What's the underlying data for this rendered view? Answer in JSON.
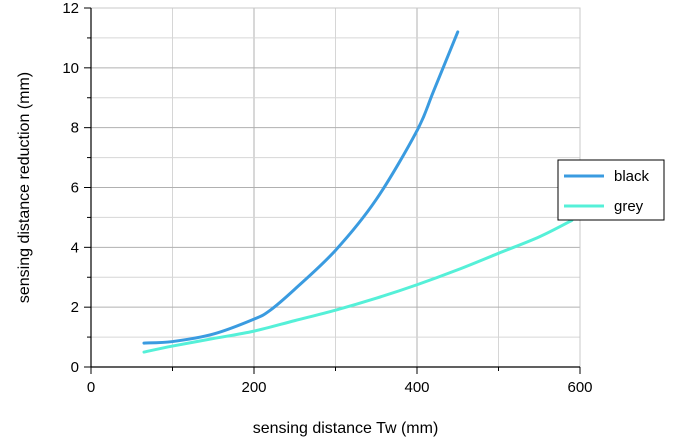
{
  "chart_data": {
    "type": "line",
    "xlabel": "sensing distance Tw (mm)",
    "ylabel": "sensing distance reduction (mm)",
    "xlim": [
      0,
      600
    ],
    "ylim": [
      0,
      12
    ],
    "x_ticks": [
      0,
      200,
      400,
      600
    ],
    "x_gridlines": [
      0,
      100,
      200,
      300,
      400,
      500,
      600
    ],
    "y_ticks": [
      0,
      2,
      4,
      6,
      8,
      10,
      12
    ],
    "y_gridlines": [
      0,
      1,
      2,
      3,
      4,
      5,
      6,
      7,
      8,
      9,
      10,
      11,
      12
    ],
    "grid": true,
    "legend_position": "right",
    "series": [
      {
        "name": "black",
        "color": "#3a9be0",
        "x": [
          65,
          100,
          150,
          200,
          220,
          250,
          300,
          350,
          400,
          420,
          450
        ],
        "y": [
          0.8,
          0.85,
          1.1,
          1.6,
          1.9,
          2.6,
          3.9,
          5.6,
          7.9,
          9.2,
          11.2
        ]
      },
      {
        "name": "grey",
        "color": "#55f0d8",
        "x": [
          65,
          100,
          150,
          200,
          250,
          300,
          350,
          400,
          450,
          500,
          550,
          590
        ],
        "y": [
          0.5,
          0.7,
          0.95,
          1.2,
          1.55,
          1.9,
          2.3,
          2.75,
          3.25,
          3.8,
          4.35,
          4.9
        ]
      }
    ]
  }
}
